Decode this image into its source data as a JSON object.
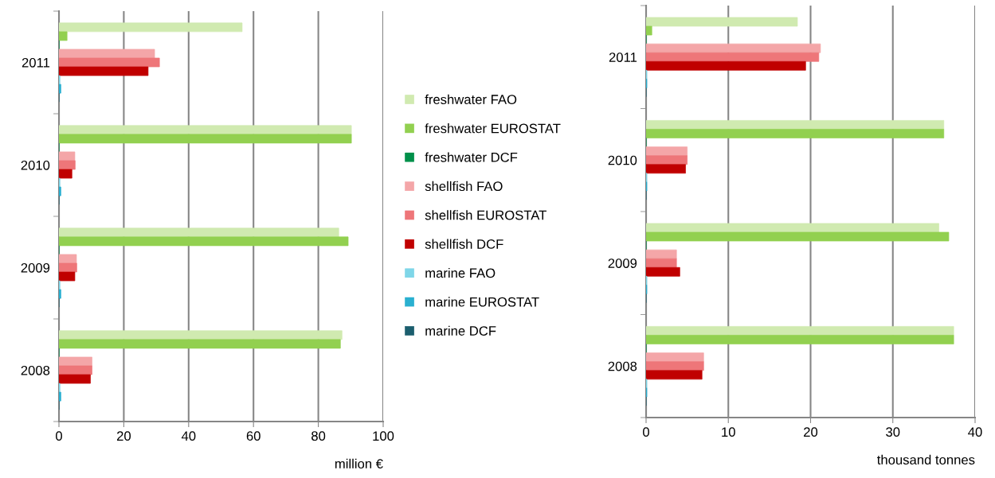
{
  "chart_data": [
    {
      "type": "bar",
      "orientation": "horizontal",
      "xlabel": "million €",
      "categories": [
        "2011",
        "2010",
        "2009",
        "2008"
      ],
      "xlim": [
        0,
        100
      ],
      "xticks": [
        0,
        20,
        40,
        60,
        80,
        100
      ],
      "grid": "x",
      "legend": "right",
      "series": [
        {
          "name": "freshwater FAO",
          "color": "#d0eab0",
          "values": [
            56.5,
            90.2,
            86.3,
            87.3
          ]
        },
        {
          "name": "freshwater EUROSTAT",
          "color": "#92d050",
          "values": [
            2.5,
            90.2,
            89.2,
            86.8
          ]
        },
        {
          "name": "freshwater DCF",
          "color": "#00904a",
          "values": [
            0,
            0,
            0,
            0
          ]
        },
        {
          "name": "shellfish FAO",
          "color": "#f4a6a8",
          "values": [
            29.5,
            4.9,
            5.4,
            10.2
          ]
        },
        {
          "name": "shellfish EUROSTAT",
          "color": "#ee7679",
          "values": [
            31,
            5,
            5.5,
            10.2
          ]
        },
        {
          "name": "shellfish DCF",
          "color": "#c00000",
          "values": [
            27.5,
            4,
            4.9,
            9.7
          ]
        },
        {
          "name": "marine FAO",
          "color": "#7fd6e8",
          "values": [
            0.3,
            0.3,
            0.3,
            0.3
          ]
        },
        {
          "name": "marine EUROSTAT",
          "color": "#2ab0d0",
          "values": [
            0.6,
            0.6,
            0.6,
            0.6
          ]
        },
        {
          "name": "marine DCF",
          "color": "#1b5e6e",
          "values": [
            0,
            0,
            0,
            0
          ]
        }
      ]
    },
    {
      "type": "bar",
      "orientation": "horizontal",
      "xlabel": "thousand tonnes",
      "categories": [
        "2011",
        "2010",
        "2009",
        "2008"
      ],
      "xlim": [
        0,
        40
      ],
      "xticks": [
        0,
        10,
        20,
        30,
        40
      ],
      "grid": "x",
      "series": [
        {
          "color": "#d0eab0",
          "values": [
            18.4,
            36.2,
            35.6,
            37.4
          ]
        },
        {
          "color": "#92d050",
          "values": [
            0.7,
            36.2,
            36.8,
            37.4
          ]
        },
        {
          "color": "#00904a",
          "values": [
            0,
            0,
            0,
            0
          ]
        },
        {
          "color": "#f4a6a8",
          "values": [
            21.2,
            5.0,
            3.7,
            7.0
          ]
        },
        {
          "color": "#ee7679",
          "values": [
            21.0,
            5.0,
            3.7,
            7.0
          ]
        },
        {
          "color": "#c00000",
          "values": [
            19.4,
            4.8,
            4.1,
            6.8
          ]
        },
        {
          "color": "#7fd6e8",
          "values": [
            0.1,
            0.1,
            0.1,
            0.1
          ]
        },
        {
          "color": "#2ab0d0",
          "values": [
            0.1,
            0.1,
            0.1,
            0.1
          ]
        },
        {
          "color": "#1b5e6e",
          "values": [
            0,
            0,
            0,
            0
          ]
        }
      ]
    }
  ]
}
